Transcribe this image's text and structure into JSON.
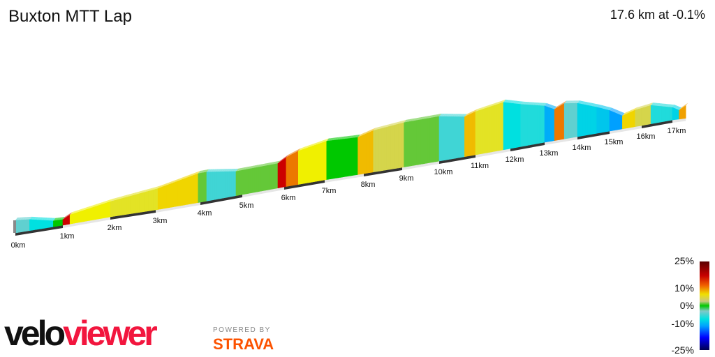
{
  "header": {
    "title": "Buxton MTT Lap",
    "summary": "17.6 km at -0.1%"
  },
  "legend": {
    "labels": [
      "25%",
      "10%",
      "0%",
      "-10%",
      "-25%"
    ]
  },
  "branding": {
    "logo_part1": "velo",
    "logo_part2": "viewer",
    "powered_by": "POWERED BY",
    "strava": "STRAVA"
  },
  "chart_data": {
    "type": "area",
    "title": "Buxton MTT Lap",
    "total_distance_km": 17.6,
    "average_grade_percent": -0.1,
    "x_tick_labels": [
      "0km",
      "1km",
      "2km",
      "3km",
      "4km",
      "5km",
      "6km",
      "7km",
      "8km",
      "9km",
      "10km",
      "11km",
      "12km",
      "13km",
      "14km",
      "15km",
      "16km",
      "17km"
    ],
    "color_scale": {
      "min": -25,
      "max": 25,
      "ticks": [
        25,
        10,
        0,
        -10,
        -25
      ],
      "unit": "%"
    },
    "grade_segments_km_percent": [
      [
        0,
        0.3,
        -2
      ],
      [
        0.3,
        0.8,
        -5
      ],
      [
        0.8,
        1.0,
        0
      ],
      [
        1.0,
        1.15,
        14
      ],
      [
        1.15,
        2.0,
        5
      ],
      [
        2.0,
        3.0,
        4
      ],
      [
        3.0,
        3.9,
        6
      ],
      [
        3.9,
        4.1,
        1
      ],
      [
        4.1,
        4.8,
        -3
      ],
      [
        4.8,
        5.8,
        1
      ],
      [
        5.8,
        6.0,
        14
      ],
      [
        6.0,
        6.3,
        9
      ],
      [
        6.3,
        7.0,
        5
      ],
      [
        7.0,
        7.8,
        0
      ],
      [
        7.8,
        8.2,
        7
      ],
      [
        8.2,
        9.0,
        3
      ],
      [
        9.0,
        10.0,
        1
      ],
      [
        10.0,
        10.7,
        -3
      ],
      [
        10.7,
        11.0,
        7
      ],
      [
        11.0,
        11.8,
        4
      ],
      [
        11.8,
        12.3,
        -5
      ],
      [
        12.3,
        13.0,
        -4
      ],
      [
        13.0,
        13.3,
        -9
      ],
      [
        13.3,
        13.6,
        9
      ],
      [
        13.6,
        14.0,
        -2
      ],
      [
        14.0,
        14.6,
        -6
      ],
      [
        14.6,
        15.0,
        -7
      ],
      [
        15.0,
        15.4,
        -10
      ],
      [
        15.4,
        15.8,
        6
      ],
      [
        15.8,
        16.3,
        3
      ],
      [
        16.3,
        17.0,
        -4
      ],
      [
        17.0,
        17.3,
        -6
      ],
      [
        17.3,
        17.6,
        8
      ]
    ]
  }
}
